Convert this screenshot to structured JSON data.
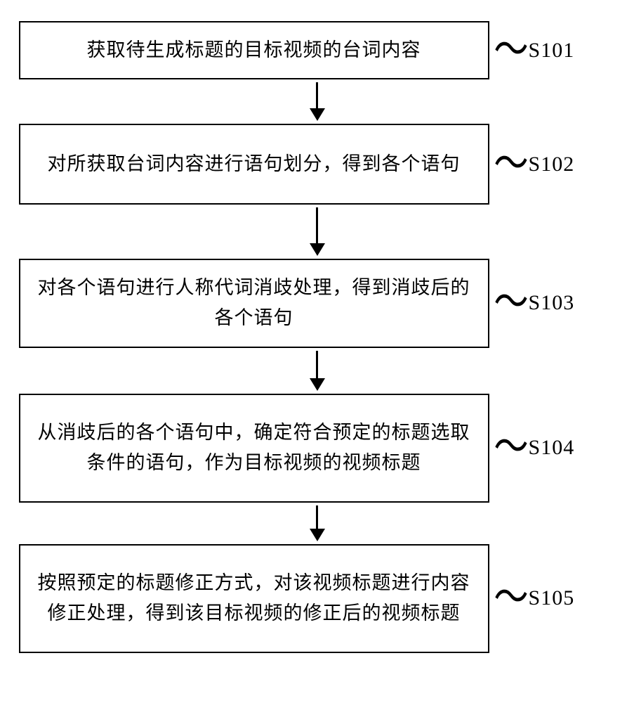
{
  "flowchart": {
    "type": "flowchart",
    "background_color": "#ffffff",
    "box_border_color": "#000000",
    "box_border_width": 2.5,
    "text_color": "#000000",
    "font_size": 27,
    "label_font_size": 30,
    "arrow_color": "#000000",
    "arrow_shaft_width": 3,
    "arrow_head_width": 22,
    "arrow_head_height": 18,
    "steps": [
      {
        "id": "S101",
        "text": "获取待生成标题的目标视频的台词内容",
        "label": "S101",
        "min_height": 68,
        "arrow_after_length": 38
      },
      {
        "id": "S102",
        "text": "对所获取台词内容进行语句划分，得到各个语句",
        "label": "S102",
        "min_height": 115,
        "arrow_after_length": 52
      },
      {
        "id": "S103",
        "text": "对各个语句进行人称代词消歧处理，得到消歧后的各个语句",
        "label": "S103",
        "min_height": 115,
        "arrow_after_length": 40
      },
      {
        "id": "S104",
        "text": "从消歧后的各个语句中，确定符合预定的标题选取条件的语句，作为目标视频的视频标题",
        "label": "S104",
        "min_height": 155,
        "arrow_after_length": 34
      },
      {
        "id": "S105",
        "text": "按照预定的标题修正方式，对该视频标题进行内容修正处理，得到该目标视频的修正后的视频标题",
        "label": "S105",
        "min_height": 155,
        "arrow_after_length": 0
      }
    ]
  }
}
